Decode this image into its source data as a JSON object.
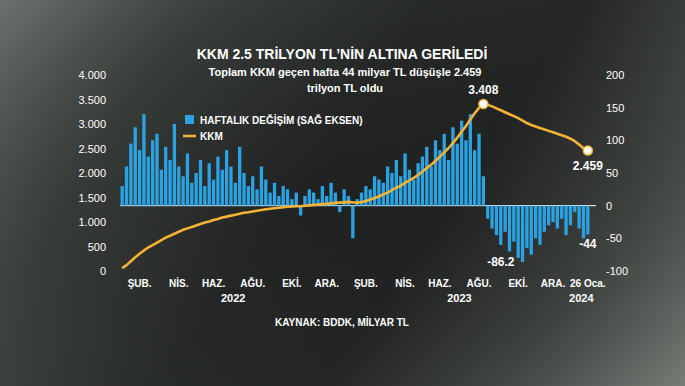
{
  "chart_data": {
    "type": "bar",
    "title": "KKM 2.5 TRİLYON TL’NİN ALTINA GERİLEDİ",
    "subtitle": "Toplam KKM geçen hafta 44 milyar TL düşüşle 2.459 trilyon TL oldu",
    "source": "KAYNAK: BDDK, MİLYAR TL",
    "categories": [
      null,
      null,
      null,
      null,
      "ŞUB.",
      null,
      null,
      null,
      null,
      null,
      null,
      null,
      null,
      "NİS.",
      null,
      null,
      null,
      null,
      null,
      null,
      null,
      "HAZ.",
      null,
      null,
      null,
      null,
      null,
      null,
      null,
      null,
      "AĞU.",
      null,
      null,
      null,
      null,
      null,
      null,
      null,
      null,
      "EKİ.",
      null,
      null,
      null,
      null,
      null,
      null,
      null,
      "ARA.",
      null,
      null,
      null,
      null,
      null,
      null,
      null,
      null,
      "ŞUB.",
      null,
      null,
      null,
      null,
      null,
      null,
      null,
      null,
      "NİS.",
      null,
      null,
      null,
      null,
      null,
      null,
      null,
      "HAZ.",
      null,
      null,
      null,
      null,
      null,
      null,
      null,
      null,
      "AĞU.",
      null,
      null,
      null,
      null,
      null,
      null,
      null,
      null,
      "EKİ.",
      null,
      null,
      null,
      null,
      null,
      null,
      null,
      "ARA.",
      null,
      null,
      null,
      null,
      null,
      null,
      null,
      "26 Oca."
    ],
    "x_groups": [
      {
        "label": "2022",
        "start": 0,
        "end": 51
      },
      {
        "label": "2023",
        "start": 52,
        "end": 103
      },
      {
        "label": "2024",
        "start": 104,
        "end": 107
      }
    ],
    "series": [
      {
        "name": "HAFTALIK DEĞİŞİM (SAĞ EKSEN)",
        "type": "bar",
        "axis": "y2",
        "color": "#2ba3e3",
        "values": [
          30,
          60,
          95,
          120,
          85,
          140,
          75,
          100,
          110,
          55,
          90,
          70,
          125,
          60,
          45,
          80,
          35,
          50,
          70,
          30,
          65,
          40,
          75,
          55,
          85,
          60,
          35,
          90,
          50,
          30,
          45,
          25,
          60,
          40,
          20,
          35,
          15,
          30,
          25,
          10,
          20,
          -15,
          15,
          25,
          20,
          10,
          30,
          15,
          35,
          20,
          -10,
          25,
          15,
          -50,
          10,
          20,
          30,
          25,
          45,
          40,
          35,
          60,
          50,
          70,
          45,
          80,
          55,
          40,
          65,
          75,
          90,
          60,
          100,
          85,
          110,
          70,
          120,
          95,
          130,
          100,
          140,
          85,
          110,
          45,
          -20,
          -35,
          -45,
          -60,
          -40,
          -70,
          -55,
          -80,
          -86.2,
          -65,
          -75,
          -50,
          -60,
          -40,
          -30,
          -25,
          -35,
          -20,
          -45,
          -30,
          -10,
          -35,
          -50,
          -44
        ],
        "value_labels": [
          null,
          null,
          null,
          null,
          null,
          null,
          null,
          null,
          null,
          null,
          null,
          null,
          null,
          null,
          null,
          null,
          null,
          null,
          null,
          null,
          null,
          null,
          null,
          null,
          null,
          null,
          null,
          null,
          null,
          null,
          null,
          null,
          null,
          null,
          null,
          null,
          null,
          null,
          null,
          null,
          null,
          null,
          null,
          null,
          null,
          null,
          null,
          null,
          null,
          null,
          null,
          null,
          null,
          null,
          null,
          null,
          null,
          null,
          null,
          null,
          null,
          null,
          null,
          null,
          null,
          null,
          null,
          null,
          null,
          null,
          null,
          null,
          null,
          null,
          null,
          null,
          null,
          null,
          null,
          null,
          null,
          null,
          null,
          null,
          null,
          null,
          null,
          null,
          null,
          null,
          null,
          null,
          "-86.2",
          null,
          null,
          null,
          null,
          null,
          null,
          null,
          null,
          null,
          null,
          null,
          null,
          null,
          null,
          "-44"
        ]
      },
      {
        "name": "KKM",
        "type": "line",
        "axis": "y",
        "color": "#f5b335",
        "values": [
          60,
          120,
          200,
          280,
          350,
          420,
          480,
          530,
          580,
          630,
          680,
          720,
          760,
          800,
          840,
          870,
          900,
          930,
          960,
          990,
          1010,
          1040,
          1060,
          1090,
          1110,
          1130,
          1150,
          1170,
          1190,
          1200,
          1215,
          1230,
          1245,
          1260,
          1270,
          1280,
          1290,
          1300,
          1310,
          1315,
          1320,
          1320,
          1330,
          1340,
          1350,
          1355,
          1365,
          1370,
          1380,
          1390,
          1395,
          1400,
          1410,
          1400,
          1395,
          1405,
          1430,
          1460,
          1490,
          1520,
          1560,
          1600,
          1650,
          1700,
          1740,
          1800,
          1850,
          1900,
          1960,
          2030,
          2100,
          2170,
          2250,
          2330,
          2420,
          2510,
          2610,
          2720,
          2840,
          2960,
          3090,
          3220,
          3330,
          3408,
          3390,
          3360,
          3320,
          3280,
          3240,
          3200,
          3160,
          3120,
          3070,
          3020,
          2980,
          2950,
          2920,
          2890,
          2860,
          2830,
          2800,
          2770,
          2740,
          2700,
          2650,
          2580,
          2503,
          2459
        ],
        "value_labels": [
          null,
          null,
          null,
          null,
          null,
          null,
          null,
          null,
          null,
          null,
          null,
          null,
          null,
          null,
          null,
          null,
          null,
          null,
          null,
          null,
          null,
          null,
          null,
          null,
          null,
          null,
          null,
          null,
          null,
          null,
          null,
          null,
          null,
          null,
          null,
          null,
          null,
          null,
          null,
          null,
          null,
          null,
          null,
          null,
          null,
          null,
          null,
          null,
          null,
          null,
          null,
          null,
          null,
          null,
          null,
          null,
          null,
          null,
          null,
          null,
          null,
          null,
          null,
          null,
          null,
          null,
          null,
          null,
          null,
          null,
          null,
          null,
          null,
          null,
          null,
          null,
          null,
          null,
          null,
          null,
          null,
          null,
          null,
          "3.408",
          null,
          null,
          null,
          null,
          null,
          null,
          null,
          null,
          null,
          null,
          null,
          null,
          null,
          null,
          null,
          null,
          null,
          null,
          null,
          null,
          null,
          null,
          null,
          "2.459"
        ]
      }
    ],
    "ylim": [
      0,
      4000
    ],
    "yticks": [
      0,
      500,
      {
        "value": 1000,
        "label": "1.000"
      },
      {
        "value": 1500,
        "label": "1.500"
      },
      {
        "value": 2000,
        "label": "2.000"
      },
      {
        "value": 2500,
        "label": "2.500"
      },
      {
        "value": 3000,
        "label": "3.000"
      },
      {
        "value": 3500,
        "label": "3.500"
      },
      {
        "value": 4000,
        "label": "4.000"
      }
    ],
    "y2lim": [
      -100,
      200
    ],
    "y2ticks": [
      -100,
      -50,
      0,
      50,
      100,
      150,
      200
    ],
    "grid": false,
    "legend": "top-left",
    "data_labels": true
  }
}
